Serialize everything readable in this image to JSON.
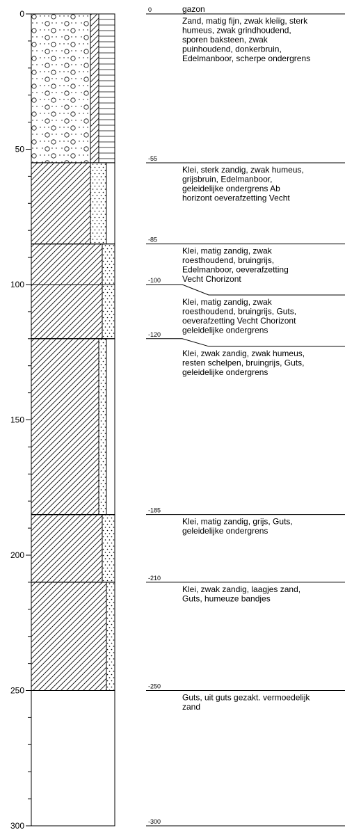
{
  "axis": {
    "ylim": [
      0,
      300
    ],
    "yticks": [
      0,
      50,
      100,
      150,
      200,
      250,
      300
    ],
    "yminorticks": [
      10,
      20,
      30,
      40,
      60,
      70,
      80,
      90,
      110,
      120,
      130,
      140,
      160,
      170,
      180,
      190,
      210,
      220,
      230,
      240,
      260,
      270,
      280,
      290
    ]
  },
  "surface": "gazon",
  "boundaries": [
    0,
    -55,
    -85,
    -100,
    -120,
    -185,
    -210,
    -250,
    -300
  ],
  "layers": [
    {
      "top": 0,
      "bottom": 55,
      "description": [
        "Zand, matig fijn, zwak kleiïg, sterk",
        "humeus, zwak grindhoudend,",
        "sporen baksteen, zwak",
        "puinhoudend, donkerbruin,",
        "Edelmanboor, scherpe ondergrens"
      ]
    },
    {
      "top": 55,
      "bottom": 85,
      "description": [
        "Klei, sterk zandig, zwak humeus,",
        "grijsbruin, Edelmanboor,",
        "geleidelijke ondergrens Ab",
        "horizont oeverafzetting Vecht"
      ]
    },
    {
      "top": 85,
      "bottom": 100,
      "description": [
        "Klei, matig zandig, zwak",
        "roesthoudend, bruingrijs,",
        "Edelmanboor, oeverafzetting",
        "Vecht Chorizont"
      ]
    },
    {
      "top": 100,
      "bottom": 120,
      "description": [
        "Klei, matig zandig, zwak",
        "roesthoudend, bruingrijs, Guts,",
        "oeverafzetting Vecht Chorizont",
        "geleidelijke ondergrens"
      ]
    },
    {
      "top": 120,
      "bottom": 185,
      "description": [
        "Klei, zwak zandig, zwak humeus,",
        "resten schelpen, bruingrijs, Guts,",
        "geleidelijke ondergrens"
      ]
    },
    {
      "top": 185,
      "bottom": 210,
      "description": [
        "Klei, matig zandig, grijs, Guts,",
        "geleidelijke ondergrens"
      ]
    },
    {
      "top": 210,
      "bottom": 250,
      "description": [
        "Klei, zwak zandig, laagjes zand,",
        "Guts, humeuze bandjes"
      ]
    },
    {
      "top": 250,
      "bottom": 300,
      "description": [
        "Guts, uit guts gezakt. vermoedelijk",
        "zand"
      ]
    }
  ]
}
